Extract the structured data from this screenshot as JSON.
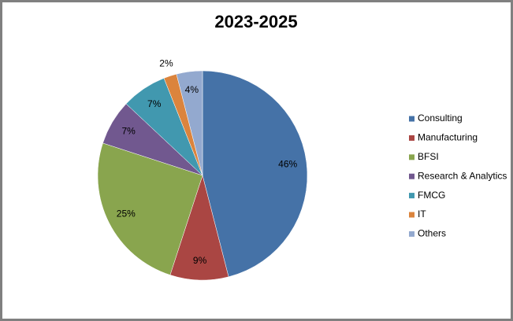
{
  "chart_data": {
    "type": "pie",
    "title": "2023-2025",
    "categories": [
      "Consulting",
      "Manufacturing",
      "BFSI",
      "Research & Analytics",
      "FMCG",
      "IT",
      "Others"
    ],
    "values": [
      46,
      9,
      25,
      7,
      7,
      2,
      4
    ],
    "value_labels": [
      "46%",
      "9%",
      "25%",
      "7%",
      "7%",
      "2%",
      "4%"
    ],
    "colors": [
      "#4572a7",
      "#aa4643",
      "#89a54e",
      "#71588f",
      "#4198af",
      "#db843d",
      "#93a9cf"
    ],
    "legend": "right"
  }
}
